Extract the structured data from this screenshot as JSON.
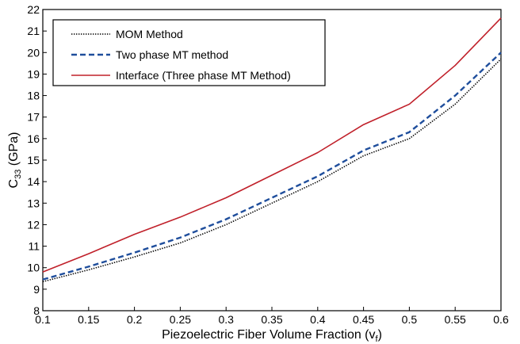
{
  "chart_data": {
    "type": "line",
    "xlabel": "Piezoelectric Fiber Volume Fraction (v",
    "xlabel_sub": "f",
    "xlabel_end": ")",
    "ylabel": "C",
    "ylabel_sub": "33",
    "ylabel_end": " (GPa)",
    "xlim": [
      0.1,
      0.6
    ],
    "ylim": [
      8,
      22
    ],
    "x_ticks": [
      "0.1",
      "0.15",
      "0.2",
      "0.25",
      "0.3",
      "0.35",
      "0.4",
      "0.45",
      "0.5",
      "0.55",
      "0.6"
    ],
    "y_ticks": [
      "8",
      "9",
      "10",
      "11",
      "12",
      "13",
      "14",
      "15",
      "16",
      "17",
      "18",
      "19",
      "20",
      "21",
      "22"
    ],
    "x": [
      0.1,
      0.15,
      0.2,
      0.25,
      0.3,
      0.35,
      0.4,
      0.45,
      0.5,
      0.55,
      0.6
    ],
    "series": [
      {
        "name": "MOM Method",
        "color": "#000000",
        "dash": "dotted",
        "values": [
          9.35,
          9.9,
          10.5,
          11.15,
          12.0,
          13.0,
          14.0,
          15.2,
          16.0,
          17.6,
          19.7
        ]
      },
      {
        "name": "Two phase MT method",
        "color": "#1f4e9c",
        "dash": "dashed",
        "values": [
          9.45,
          10.05,
          10.7,
          11.4,
          12.25,
          13.25,
          14.25,
          15.45,
          16.3,
          18.0,
          20.0
        ]
      },
      {
        "name": "Interface (Three phase MT Method)",
        "color": "#c0202a",
        "dash": "solid",
        "values": [
          9.8,
          10.65,
          11.55,
          12.35,
          13.25,
          14.3,
          15.35,
          16.65,
          17.6,
          19.4,
          21.6
        ]
      }
    ],
    "legend_position": "top-left",
    "grid": false
  }
}
